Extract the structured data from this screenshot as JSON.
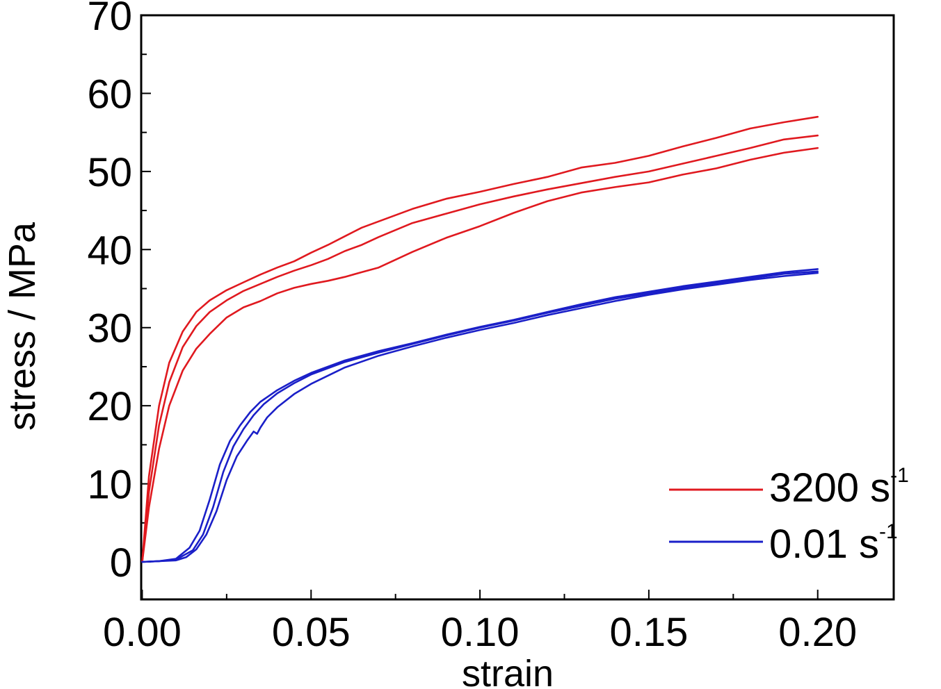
{
  "chart_data": {
    "type": "line",
    "xlabel": "strain",
    "ylabel": "stress / MPa",
    "xlim": [
      -0.0003,
      0.2225
    ],
    "ylim": [
      -4.8,
      70
    ],
    "x_ticks": [
      0.0,
      0.05,
      0.1,
      0.15,
      0.2
    ],
    "x_tick_labels": [
      "0.00",
      "0.05",
      "0.10",
      "0.15",
      "0.20"
    ],
    "x_minor_step": 0.025,
    "y_ticks": [
      0,
      10,
      20,
      30,
      40,
      50,
      60,
      70
    ],
    "y_tick_labels": [
      "0",
      "10",
      "20",
      "30",
      "40",
      "50",
      "60",
      "70"
    ],
    "y_minor_step": 5,
    "grid": false,
    "legend_position": "bottom-right",
    "legend": [
      {
        "label": "3200 s",
        "superscript": "-1",
        "color": "#e0191f"
      },
      {
        "label": "0.01 s",
        "superscript": "-1",
        "color": "#1a1fc8"
      }
    ],
    "series": [
      {
        "group": "3200 s-1",
        "color": "#e0191f",
        "points": [
          [
            0,
            0
          ],
          [
            0.002,
            11
          ],
          [
            0.005,
            20
          ],
          [
            0.008,
            25.5
          ],
          [
            0.012,
            29.5
          ],
          [
            0.016,
            32
          ],
          [
            0.02,
            33.5
          ],
          [
            0.025,
            34.8
          ],
          [
            0.03,
            35.8
          ],
          [
            0.035,
            36.8
          ],
          [
            0.04,
            37.7
          ],
          [
            0.045,
            38.5
          ],
          [
            0.05,
            39.6
          ],
          [
            0.055,
            40.6
          ],
          [
            0.06,
            41.7
          ],
          [
            0.065,
            42.8
          ],
          [
            0.07,
            43.6
          ],
          [
            0.075,
            44.4
          ],
          [
            0.08,
            45.2
          ],
          [
            0.09,
            46.5
          ],
          [
            0.1,
            47.4
          ],
          [
            0.11,
            48.4
          ],
          [
            0.12,
            49.3
          ],
          [
            0.13,
            50.5
          ],
          [
            0.14,
            51.1
          ],
          [
            0.15,
            52
          ],
          [
            0.16,
            53.2
          ],
          [
            0.17,
            54.3
          ],
          [
            0.18,
            55.5
          ],
          [
            0.19,
            56.3
          ],
          [
            0.2,
            57
          ]
        ]
      },
      {
        "group": "3200 s-1",
        "color": "#e0191f",
        "points": [
          [
            0,
            0
          ],
          [
            0.002,
            9
          ],
          [
            0.005,
            17.5
          ],
          [
            0.008,
            23
          ],
          [
            0.012,
            27.5
          ],
          [
            0.016,
            30.2
          ],
          [
            0.02,
            32
          ],
          [
            0.025,
            33.5
          ],
          [
            0.03,
            34.7
          ],
          [
            0.035,
            35.6
          ],
          [
            0.04,
            36.5
          ],
          [
            0.045,
            37.3
          ],
          [
            0.05,
            38
          ],
          [
            0.055,
            38.8
          ],
          [
            0.06,
            39.8
          ],
          [
            0.065,
            40.6
          ],
          [
            0.07,
            41.6
          ],
          [
            0.075,
            42.5
          ],
          [
            0.08,
            43.4
          ],
          [
            0.09,
            44.6
          ],
          [
            0.1,
            45.8
          ],
          [
            0.11,
            46.8
          ],
          [
            0.12,
            47.7
          ],
          [
            0.13,
            48.5
          ],
          [
            0.14,
            49.3
          ],
          [
            0.15,
            50
          ],
          [
            0.16,
            51
          ],
          [
            0.17,
            52
          ],
          [
            0.18,
            53
          ],
          [
            0.19,
            54.1
          ],
          [
            0.2,
            54.6
          ]
        ]
      },
      {
        "group": "3200 s-1",
        "color": "#e0191f",
        "points": [
          [
            0,
            0
          ],
          [
            0.002,
            7
          ],
          [
            0.005,
            14.5
          ],
          [
            0.008,
            20
          ],
          [
            0.012,
            24.5
          ],
          [
            0.016,
            27.3
          ],
          [
            0.02,
            29.2
          ],
          [
            0.025,
            31.3
          ],
          [
            0.03,
            32.6
          ],
          [
            0.035,
            33.4
          ],
          [
            0.04,
            34.4
          ],
          [
            0.045,
            35.1
          ],
          [
            0.05,
            35.6
          ],
          [
            0.055,
            36
          ],
          [
            0.06,
            36.5
          ],
          [
            0.065,
            37.1
          ],
          [
            0.07,
            37.7
          ],
          [
            0.075,
            38.7
          ],
          [
            0.08,
            39.7
          ],
          [
            0.09,
            41.5
          ],
          [
            0.1,
            43
          ],
          [
            0.11,
            44.7
          ],
          [
            0.12,
            46.2
          ],
          [
            0.13,
            47.3
          ],
          [
            0.14,
            48
          ],
          [
            0.15,
            48.6
          ],
          [
            0.16,
            49.6
          ],
          [
            0.17,
            50.4
          ],
          [
            0.18,
            51.5
          ],
          [
            0.19,
            52.4
          ],
          [
            0.2,
            53
          ]
        ]
      },
      {
        "group": "0.01 s-1",
        "color": "#1a1fc8",
        "points": [
          [
            0,
            0
          ],
          [
            0.005,
            0.1
          ],
          [
            0.01,
            0.4
          ],
          [
            0.014,
            1.8
          ],
          [
            0.017,
            4
          ],
          [
            0.02,
            8
          ],
          [
            0.023,
            12.5
          ],
          [
            0.026,
            15.5
          ],
          [
            0.029,
            17.5
          ],
          [
            0.032,
            19.2
          ],
          [
            0.035,
            20.5
          ],
          [
            0.04,
            22
          ],
          [
            0.045,
            23.2
          ],
          [
            0.05,
            24.2
          ],
          [
            0.06,
            25.8
          ],
          [
            0.07,
            27
          ],
          [
            0.08,
            28
          ],
          [
            0.09,
            29.1
          ],
          [
            0.1,
            30.1
          ],
          [
            0.11,
            31
          ],
          [
            0.12,
            32
          ],
          [
            0.13,
            33
          ],
          [
            0.14,
            33.9
          ],
          [
            0.15,
            34.6
          ],
          [
            0.16,
            35.3
          ],
          [
            0.17,
            35.9
          ],
          [
            0.18,
            36.5
          ],
          [
            0.19,
            37.1
          ],
          [
            0.2,
            37.5
          ]
        ]
      },
      {
        "group": "0.01 s-1",
        "color": "#1a1fc8",
        "points": [
          [
            0,
            0
          ],
          [
            0.005,
            0.1
          ],
          [
            0.01,
            0.3
          ],
          [
            0.015,
            1.5
          ],
          [
            0.018,
            3.5
          ],
          [
            0.021,
            7
          ],
          [
            0.024,
            11.5
          ],
          [
            0.027,
            14.8
          ],
          [
            0.03,
            17
          ],
          [
            0.033,
            18.8
          ],
          [
            0.036,
            20.2
          ],
          [
            0.04,
            21.6
          ],
          [
            0.045,
            22.9
          ],
          [
            0.05,
            24
          ],
          [
            0.06,
            25.6
          ],
          [
            0.07,
            26.8
          ],
          [
            0.08,
            27.9
          ],
          [
            0.09,
            29
          ],
          [
            0.1,
            30
          ],
          [
            0.11,
            30.9
          ],
          [
            0.12,
            31.9
          ],
          [
            0.13,
            32.8
          ],
          [
            0.14,
            33.7
          ],
          [
            0.15,
            34.4
          ],
          [
            0.16,
            35.1
          ],
          [
            0.17,
            35.7
          ],
          [
            0.18,
            36.3
          ],
          [
            0.19,
            36.9
          ],
          [
            0.2,
            37.2
          ]
        ]
      },
      {
        "group": "0.01 s-1",
        "color": "#1a1fc8",
        "points": [
          [
            0,
            0
          ],
          [
            0.005,
            0.1
          ],
          [
            0.01,
            0.2
          ],
          [
            0.013,
            0.6
          ],
          [
            0.016,
            1.6
          ],
          [
            0.019,
            3.5
          ],
          [
            0.022,
            6.5
          ],
          [
            0.025,
            10.5
          ],
          [
            0.028,
            13.5
          ],
          [
            0.031,
            15.5
          ],
          [
            0.033,
            16.7
          ],
          [
            0.034,
            16.4
          ],
          [
            0.035,
            17.2
          ],
          [
            0.037,
            18.5
          ],
          [
            0.04,
            19.8
          ],
          [
            0.045,
            21.5
          ],
          [
            0.05,
            22.8
          ],
          [
            0.06,
            24.9
          ],
          [
            0.07,
            26.4
          ],
          [
            0.08,
            27.6
          ],
          [
            0.09,
            28.7
          ],
          [
            0.1,
            29.7
          ],
          [
            0.11,
            30.6
          ],
          [
            0.12,
            31.6
          ],
          [
            0.13,
            32.5
          ],
          [
            0.14,
            33.4
          ],
          [
            0.15,
            34.2
          ],
          [
            0.16,
            34.9
          ],
          [
            0.17,
            35.5
          ],
          [
            0.18,
            36.1
          ],
          [
            0.19,
            36.6
          ],
          [
            0.2,
            37
          ]
        ]
      }
    ]
  }
}
